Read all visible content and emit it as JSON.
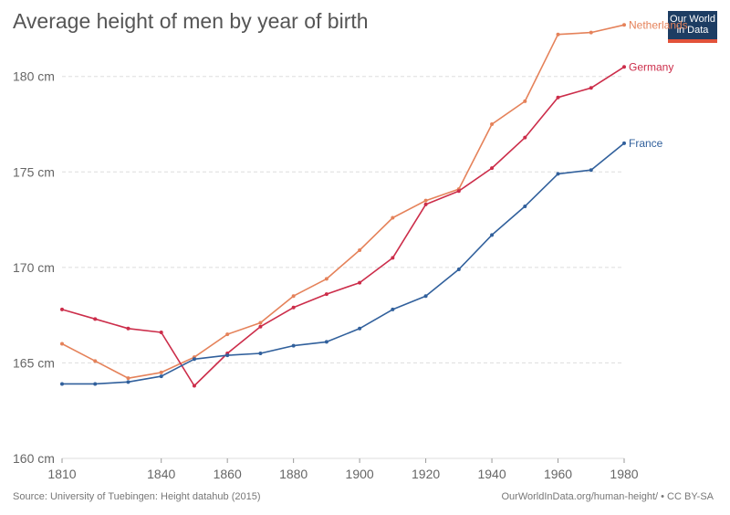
{
  "title": "Average height of men by year of birth",
  "logo": {
    "line1": "Our World",
    "line2": "in Data",
    "bg": "#1d3d63",
    "accent": "#e2523a"
  },
  "source": "Source: University of Tuebingen: Height datahub (2015)",
  "credit": "OurWorldInData.org/human-height/ • CC BY-SA",
  "chart_data": {
    "type": "line",
    "title": "Average height of men by year of birth",
    "xlabel": "",
    "ylabel": "",
    "xlim": [
      1810,
      1980
    ],
    "ylim": [
      160,
      183
    ],
    "x_ticks": [
      1810,
      1840,
      1860,
      1880,
      1900,
      1920,
      1940,
      1960,
      1980
    ],
    "x_tick_labels": [
      "1810",
      "1840",
      "1860",
      "1880",
      "1900",
      "1920",
      "1940",
      "1960",
      "1980"
    ],
    "y_ticks": [
      160,
      165,
      170,
      175,
      180
    ],
    "y_tick_labels": [
      "160 cm",
      "165 cm",
      "170 cm",
      "175 cm",
      "180 cm"
    ],
    "grid": "horizontal dashed",
    "legend": "inline labels at line ends",
    "x": [
      1810,
      1820,
      1830,
      1840,
      1850,
      1860,
      1870,
      1880,
      1890,
      1900,
      1910,
      1920,
      1930,
      1940,
      1950,
      1960,
      1970,
      1980
    ],
    "series": [
      {
        "name": "Netherlands",
        "color": "#e5825a",
        "values": [
          166.0,
          165.1,
          164.2,
          164.5,
          165.3,
          166.5,
          167.1,
          168.5,
          169.4,
          170.9,
          172.6,
          173.5,
          174.1,
          177.5,
          178.7,
          182.2,
          182.3,
          182.7
        ]
      },
      {
        "name": "Germany",
        "color": "#cc2d4a",
        "values": [
          167.8,
          167.3,
          166.8,
          166.6,
          163.8,
          165.5,
          166.9,
          167.9,
          168.6,
          169.2,
          170.5,
          173.3,
          174.0,
          175.2,
          176.8,
          178.9,
          179.4,
          180.5
        ]
      },
      {
        "name": "France",
        "color": "#31609c",
        "values": [
          163.9,
          163.9,
          164.0,
          164.3,
          165.2,
          165.4,
          165.5,
          165.9,
          166.1,
          166.8,
          167.8,
          168.5,
          169.9,
          171.7,
          173.2,
          174.9,
          175.1,
          176.5
        ]
      }
    ]
  }
}
